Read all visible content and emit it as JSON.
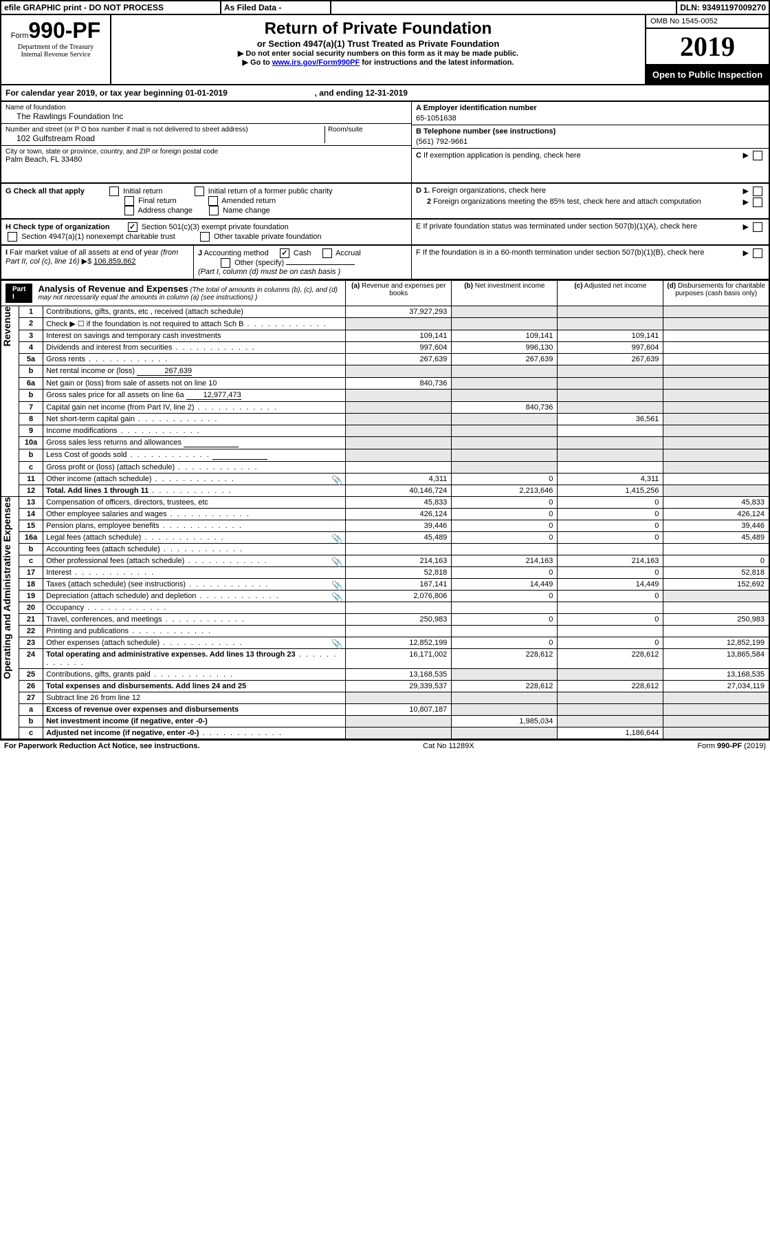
{
  "topbar": {
    "efile": "efile GRAPHIC print - DO NOT PROCESS",
    "asfiled": "As Filed Data -",
    "dln_label": "DLN:",
    "dln": "93491197009270"
  },
  "header": {
    "form_prefix": "Form",
    "form_no": "990-PF",
    "dept1": "Department of the Treasury",
    "dept2": "Internal Revenue Service",
    "title": "Return of Private Foundation",
    "sub": "or Section 4947(a)(1) Trust Treated as Private Foundation",
    "note1": "▶ Do not enter social security numbers on this form as it may be made public.",
    "note2_pre": "▶ Go to ",
    "note2_link": "www.irs.gov/Form990PF",
    "note2_post": " for instructions and the latest information.",
    "omb": "OMB No 1545-0052",
    "year": "2019",
    "open": "Open to Public Inspection"
  },
  "cal": {
    "text_a": "For calendar year 2019, or tax year beginning ",
    "begin": "01-01-2019",
    "text_b": ", and ending ",
    "end": "12-31-2019"
  },
  "info": {
    "name_label": "Name of foundation",
    "name": "The Rawlings Foundation Inc",
    "addr_label": "Number and street (or P O  box number if mail is not delivered to street address)",
    "addr": "102 Gulfstream Road",
    "room_label": "Room/suite",
    "city_label": "City or town, state or province, country, and ZIP or foreign postal code",
    "city": "Palm Beach, FL  33480",
    "a_label": "A Employer identification number",
    "a": "65-1051638",
    "b_label": "B Telephone number (see instructions)",
    "b": "(561) 792-9661",
    "c_label": "C If exemption application is pending, check here"
  },
  "g": {
    "label": "G Check all that apply",
    "o1": "Initial return",
    "o2": "Initial return of a former public charity",
    "o3": "Final return",
    "o4": "Amended return",
    "o5": "Address change",
    "o6": "Name change",
    "d1": "D 1. Foreign organizations, check here",
    "d2": "2 Foreign organizations meeting the 85% test, check here and attach computation",
    "e": "E If private foundation status was terminated under section 507(b)(1)(A), check here",
    "f": "F If the foundation is in a 60-month termination under section 507(b)(1)(B), check here"
  },
  "h": {
    "label": "H Check type of organization",
    "o1": "Section 501(c)(3) exempt private foundation",
    "o2": "Section 4947(a)(1) nonexempt charitable trust",
    "o3": "Other taxable private foundation"
  },
  "i": {
    "label": "I Fair market value of all assets at end of year (from Part II, col  (c), line 16) ▶$",
    "val": "106,859,862"
  },
  "j": {
    "label": "J Accounting method",
    "cash": "Cash",
    "accrual": "Accrual",
    "other": "Other (specify)",
    "note": "(Part I, column (d) must be on cash basis )"
  },
  "part1": {
    "label": "Part I",
    "title": "Analysis of Revenue and Expenses",
    "sub": "(The total of amounts in columns (b), (c), and (d) may not necessarily equal the amounts in column (a) (see instructions) )",
    "col_a": "(a) Revenue and expenses per books",
    "col_b": "(b) Net investment income",
    "col_c": "(c) Adjusted net income",
    "col_d": "(d) Disbursements for charitable purposes (cash basis only)"
  },
  "vert": {
    "rev": "Revenue",
    "exp": "Operating and Administrative Expenses"
  },
  "rows": [
    {
      "n": "1",
      "d": "Contributions, gifts, grants, etc , received (attach schedule)",
      "a": "37,927,293",
      "b": "",
      "c": "",
      "dd": "",
      "agrey": false,
      "bgrey": true,
      "cgrey": true,
      "dgrey": true
    },
    {
      "n": "2",
      "d": "Check ▶ ☐ if the foundation is not required to attach Sch  B",
      "dots": true,
      "a": "",
      "b": "",
      "c": "",
      "dd": "",
      "bgrey": true,
      "cgrey": true,
      "dgrey": true,
      "agrey": true
    },
    {
      "n": "3",
      "d": "Interest on savings and temporary cash investments",
      "a": "109,141",
      "b": "109,141",
      "c": "109,141",
      "dd": ""
    },
    {
      "n": "4",
      "d": "Dividends and interest from securities",
      "dots": true,
      "a": "997,604",
      "b": "996,130",
      "c": "997,604",
      "dd": ""
    },
    {
      "n": "5a",
      "d": "Gross rents",
      "dots": true,
      "a": "267,639",
      "b": "267,639",
      "c": "267,639",
      "dd": ""
    },
    {
      "n": "b",
      "d": "Net rental income or (loss)",
      "inline": "267,639",
      "a": "",
      "b": "",
      "c": "",
      "dd": "",
      "agrey": true,
      "bgrey": true,
      "cgrey": true,
      "dgrey": true
    },
    {
      "n": "6a",
      "d": "Net gain or (loss) from sale of assets not on line 10",
      "a": "840,736",
      "b": "",
      "c": "",
      "dd": "",
      "bgrey": true,
      "cgrey": true,
      "dgrey": true
    },
    {
      "n": "b",
      "d": "Gross sales price for all assets on line 6a",
      "inline": "12,977,473",
      "a": "",
      "b": "",
      "c": "",
      "dd": "",
      "agrey": true,
      "bgrey": true,
      "cgrey": true,
      "dgrey": true
    },
    {
      "n": "7",
      "d": "Capital gain net income (from Part IV, line 2)",
      "dots": true,
      "a": "",
      "b": "840,736",
      "c": "",
      "dd": "",
      "agrey": true,
      "cgrey": true,
      "dgrey": true
    },
    {
      "n": "8",
      "d": "Net short-term capital gain",
      "dots": true,
      "a": "",
      "b": "",
      "c": "36,561",
      "dd": "",
      "agrey": true,
      "bgrey": true,
      "dgrey": true
    },
    {
      "n": "9",
      "d": "Income modifications",
      "dots": true,
      "a": "",
      "b": "",
      "c": "",
      "dd": "",
      "agrey": true,
      "bgrey": true,
      "dgrey": true
    },
    {
      "n": "10a",
      "d": "Gross sales less returns and allowances",
      "inlineblank": true,
      "a": "",
      "b": "",
      "c": "",
      "dd": "",
      "agrey": true,
      "bgrey": true,
      "cgrey": true,
      "dgrey": true
    },
    {
      "n": "b",
      "d": "Less  Cost of goods sold",
      "dots": true,
      "inlineblank": true,
      "a": "",
      "b": "",
      "c": "",
      "dd": "",
      "agrey": true,
      "bgrey": true,
      "cgrey": true,
      "dgrey": true
    },
    {
      "n": "c",
      "d": "Gross profit or (loss) (attach schedule)",
      "dots": true,
      "a": "",
      "b": "",
      "c": "",
      "dd": "",
      "bgrey": true,
      "dgrey": true
    },
    {
      "n": "11",
      "d": "Other income (attach schedule)",
      "dots": true,
      "icon": true,
      "a": "4,311",
      "b": "0",
      "c": "4,311",
      "dd": ""
    },
    {
      "n": "12",
      "d": "Total. Add lines 1 through 11",
      "dots": true,
      "bold": true,
      "a": "40,146,724",
      "b": "2,213,646",
      "c": "1,415,256",
      "dd": "",
      "dgrey": true
    }
  ],
  "exprows": [
    {
      "n": "13",
      "d": "Compensation of officers, directors, trustees, etc",
      "a": "45,833",
      "b": "0",
      "c": "0",
      "dd": "45,833"
    },
    {
      "n": "14",
      "d": "Other employee salaries and wages",
      "dots": true,
      "a": "426,124",
      "b": "0",
      "c": "0",
      "dd": "426,124"
    },
    {
      "n": "15",
      "d": "Pension plans, employee benefits",
      "dots": true,
      "a": "39,446",
      "b": "0",
      "c": "0",
      "dd": "39,446"
    },
    {
      "n": "16a",
      "d": "Legal fees (attach schedule)",
      "dots": true,
      "icon": true,
      "a": "45,489",
      "b": "0",
      "c": "0",
      "dd": "45,489"
    },
    {
      "n": "b",
      "d": "Accounting fees (attach schedule)",
      "dots": true,
      "a": "",
      "b": "",
      "c": "",
      "dd": ""
    },
    {
      "n": "c",
      "d": "Other professional fees (attach schedule)",
      "dots": true,
      "icon": true,
      "a": "214,163",
      "b": "214,163",
      "c": "214,163",
      "dd": "0"
    },
    {
      "n": "17",
      "d": "Interest",
      "dots": true,
      "a": "52,818",
      "b": "0",
      "c": "0",
      "dd": "52,818"
    },
    {
      "n": "18",
      "d": "Taxes (attach schedule) (see instructions)",
      "dots": true,
      "icon": true,
      "a": "167,141",
      "b": "14,449",
      "c": "14,449",
      "dd": "152,692"
    },
    {
      "n": "19",
      "d": "Depreciation (attach schedule) and depletion",
      "dots": true,
      "icon": true,
      "a": "2,076,806",
      "b": "0",
      "c": "0",
      "dd": "",
      "dgrey": true
    },
    {
      "n": "20",
      "d": "Occupancy",
      "dots": true,
      "a": "",
      "b": "",
      "c": "",
      "dd": ""
    },
    {
      "n": "21",
      "d": "Travel, conferences, and meetings",
      "dots": true,
      "a": "250,983",
      "b": "0",
      "c": "0",
      "dd": "250,983"
    },
    {
      "n": "22",
      "d": "Printing and publications",
      "dots": true,
      "a": "",
      "b": "",
      "c": "",
      "dd": ""
    },
    {
      "n": "23",
      "d": "Other expenses (attach schedule)",
      "dots": true,
      "icon": true,
      "a": "12,852,199",
      "b": "0",
      "c": "0",
      "dd": "12,852,199"
    },
    {
      "n": "24",
      "d": "Total operating and administrative expenses. Add lines 13 through 23",
      "dots": true,
      "bold": true,
      "a": "16,171,002",
      "b": "228,612",
      "c": "228,612",
      "dd": "13,865,584"
    },
    {
      "n": "25",
      "d": "Contributions, gifts, grants paid",
      "dots": true,
      "a": "13,168,535",
      "b": "",
      "c": "",
      "dd": "13,168,535",
      "bgrey": true,
      "cgrey": true
    },
    {
      "n": "26",
      "d": "Total expenses and disbursements. Add lines 24 and 25",
      "bold": true,
      "a": "29,339,537",
      "b": "228,612",
      "c": "228,612",
      "dd": "27,034,119"
    },
    {
      "n": "27",
      "d": "Subtract line 26 from line 12",
      "a": "",
      "b": "",
      "c": "",
      "dd": "",
      "agrey": true,
      "bgrey": true,
      "cgrey": true,
      "dgrey": true
    },
    {
      "n": "a",
      "d": "Excess of revenue over expenses and disbursements",
      "bold": true,
      "a": "10,807,187",
      "b": "",
      "c": "",
      "dd": "",
      "bgrey": true,
      "cgrey": true,
      "dgrey": true
    },
    {
      "n": "b",
      "d": "Net investment income (if negative, enter -0-)",
      "bold": true,
      "a": "",
      "b": "1,985,034",
      "c": "",
      "dd": "",
      "agrey": true,
      "cgrey": true,
      "dgrey": true
    },
    {
      "n": "c",
      "d": "Adjusted net income (if negative, enter -0-)",
      "dots": true,
      "bold": true,
      "a": "",
      "b": "",
      "c": "1,186,644",
      "dd": "",
      "agrey": true,
      "bgrey": true,
      "dgrey": true
    }
  ],
  "footer": {
    "left": "For Paperwork Reduction Act Notice, see instructions.",
    "mid": "Cat  No  11289X",
    "right": "Form 990-PF (2019)"
  }
}
